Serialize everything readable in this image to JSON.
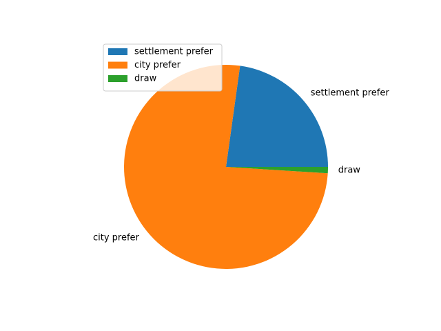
{
  "chart_data": {
    "type": "pie",
    "title": "",
    "categories": [
      "settlement prefer",
      "city prefer",
      "draw"
    ],
    "values": [
      22.8,
      76.2,
      1.0
    ],
    "colors": [
      "#1f77b4",
      "#ff7f0e",
      "#2ca02c"
    ],
    "start_angle_deg": 0,
    "direction": "counterclockwise",
    "legend": {
      "placement": "upper-left",
      "entries": [
        "settlement prefer",
        "city prefer",
        "draw"
      ]
    }
  }
}
